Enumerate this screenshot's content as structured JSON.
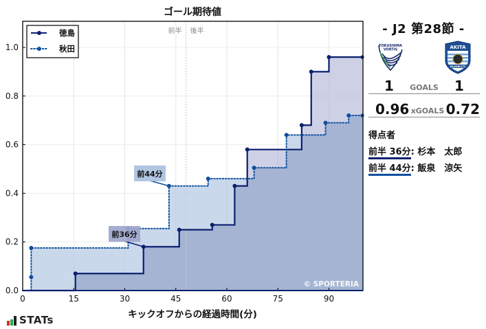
{
  "chart_data": {
    "type": "line",
    "subtype": "cumulative-step",
    "title": "ゴール期待値",
    "xlabel": "キックオフからの経過時間(分)",
    "ylabel": "",
    "xlim": [
      0,
      100
    ],
    "ylim": [
      0,
      1.1
    ],
    "xticks": [
      0,
      15,
      30,
      45,
      60,
      75,
      90
    ],
    "yticks": [
      0.0,
      0.2,
      0.4,
      0.6,
      0.8,
      1.0
    ],
    "ytick_labels": [
      "0.0",
      "0.2",
      "0.4",
      "0.6",
      "0.8",
      "1.0"
    ],
    "grid": true,
    "legend_position": "upper left",
    "halftime_marker": {
      "x": 48,
      "left_label": "前半",
      "right_label": "後半"
    },
    "series": [
      {
        "name": "徳島",
        "style": "solid",
        "color": "#0a1f6e",
        "fill": "#a6acd0",
        "points": [
          {
            "x": 15.5,
            "y": 0.07
          },
          {
            "x": 35.5,
            "y": 0.18
          },
          {
            "x": 46.0,
            "y": 0.25
          },
          {
            "x": 55.7,
            "y": 0.27
          },
          {
            "x": 62.3,
            "y": 0.43
          },
          {
            "x": 66.0,
            "y": 0.58
          },
          {
            "x": 82.0,
            "y": 0.68
          },
          {
            "x": 84.8,
            "y": 0.9
          },
          {
            "x": 90.0,
            "y": 0.96
          },
          {
            "x": 100.0,
            "y": 0.96
          }
        ],
        "final_xg": 0.96
      },
      {
        "name": "秋田",
        "style": "dotted",
        "color": "#0d4f9e",
        "fill": "#b4c8e2",
        "points": [
          {
            "x": 2.5,
            "y": 0.055
          },
          {
            "x": 2.5,
            "y": 0.175
          },
          {
            "x": 31.0,
            "y": 0.255
          },
          {
            "x": 43.0,
            "y": 0.43
          },
          {
            "x": 54.5,
            "y": 0.46
          },
          {
            "x": 68.0,
            "y": 0.505
          },
          {
            "x": 77.5,
            "y": 0.64
          },
          {
            "x": 89.0,
            "y": 0.69
          },
          {
            "x": 95.8,
            "y": 0.72
          },
          {
            "x": 100.0,
            "y": 0.72
          }
        ],
        "final_xg": 0.72
      }
    ],
    "annotations": [
      {
        "text": "前36分",
        "team": "徳島",
        "x": 35.5,
        "y": 0.18,
        "box_color": "#9ea6cc"
      },
      {
        "text": "前44分",
        "team": "秋田",
        "x": 43.0,
        "y": 0.43,
        "box_color": "#a9c1de"
      }
    ],
    "watermark": "© SPORTERIA"
  },
  "match": {
    "title": "- J2 第28節 -",
    "home": {
      "name": "徳島",
      "logo": "tokushima-vortis-logo",
      "logo_text": "TOKUSHIMA VORTIS",
      "goals": "1",
      "xg": "0.96"
    },
    "away": {
      "name": "秋田",
      "logo": "akita-blaublitz-logo",
      "logo_text": "AKITA",
      "goals": "1",
      "xg": "0.72"
    },
    "goals_label": "GOALS",
    "xg_label": "xGOALS"
  },
  "scorers": {
    "title": "得点者",
    "items": [
      {
        "time": "前半 36分",
        "name": ": 杉本　太郎",
        "color": "#0a1f6e"
      },
      {
        "time": "前半 44分",
        "name": ": 飯泉　涼矢",
        "color": "#0d4f9e"
      }
    ]
  },
  "brand": {
    "text": "STATs",
    "bar_colors": [
      "#d62a2a",
      "#2ea84a",
      "#222222"
    ]
  }
}
